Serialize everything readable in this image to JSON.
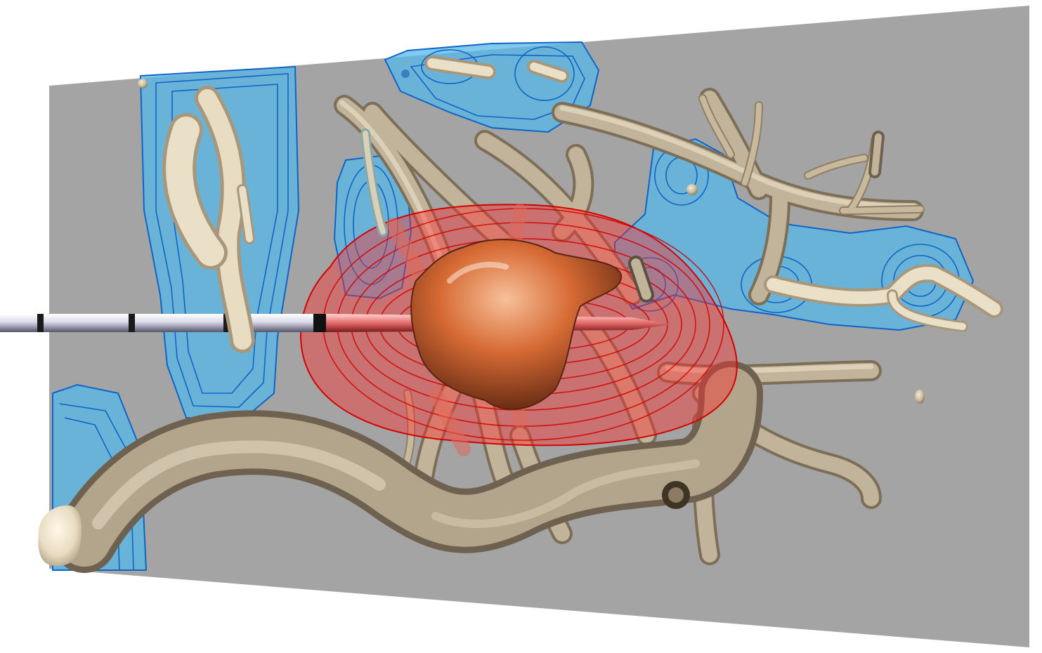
{
  "scene": {
    "background_color": "#ffffff",
    "slice_plane_color": "#a4a4a4",
    "vessel_color": "#c2b49b",
    "vessel_shadow_color": "#7d6e58",
    "vessel_highlight_color": "#efe6d2",
    "tumor_color": "#d66a34",
    "tumor_highlight_color": "#f6b585",
    "tumor_shadow_color": "#5a2410",
    "ablation_zone_color": "#ff2b2b",
    "ablation_contour_color": "#d40000",
    "risk_zone_color": "#57b8ea",
    "risk_contour_color": "#0f64c7",
    "needle_shaft_color": "#d9d9ea",
    "needle_band_color": "#1a1a1a",
    "needle_tip_color": "#f0a0a0"
  }
}
